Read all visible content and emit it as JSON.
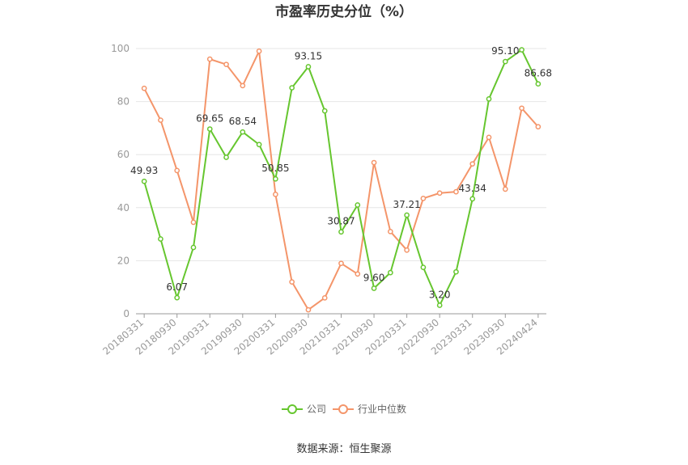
{
  "chart_data": {
    "type": "line",
    "title": "市盈率历史分位（%）",
    "source": "数据来源：恒生聚源",
    "ylim": [
      0,
      100
    ],
    "yticks": [
      0,
      20,
      40,
      60,
      80,
      100
    ],
    "grid": true,
    "legend_position": "bottom",
    "x_tick_labels": [
      "20180331",
      "20180930",
      "20190331",
      "20190930",
      "20200331",
      "20200930",
      "20210331",
      "20210930",
      "20220331",
      "20220930",
      "20230331",
      "20230930",
      "20240424"
    ],
    "x": [
      "20180331",
      "20180630",
      "20180930",
      "20181231",
      "20190331",
      "20190630",
      "20190930",
      "20191231",
      "20200331",
      "20200630",
      "20200930",
      "20201231",
      "20210331",
      "20210630",
      "20210930",
      "20211231",
      "20220331",
      "20220630",
      "20220930",
      "20221231",
      "20230331",
      "20230630",
      "20230930",
      "20231231",
      "20240424"
    ],
    "series": [
      {
        "name": "公司",
        "color": "#66c62f",
        "values": [
          49.93,
          28.2,
          6.07,
          25.0,
          69.65,
          59.0,
          68.54,
          63.8,
          50.85,
          85.2,
          93.15,
          76.5,
          30.87,
          41.0,
          9.6,
          15.5,
          37.21,
          17.5,
          3.2,
          15.8,
          43.34,
          81.0,
          95.1,
          99.5,
          86.68
        ],
        "labels": {
          "0": "49.93",
          "2": "6.07",
          "4": "69.65",
          "6": "68.54",
          "8": "50.85",
          "10": "93.15",
          "12": "30.87",
          "14": "9.60",
          "16": "37.21",
          "18": "3.20",
          "20": "43.34",
          "22": "95.10",
          "24": "86.68"
        }
      },
      {
        "name": "行业中位数",
        "color": "#f4956a",
        "values": [
          85.0,
          73.0,
          54.0,
          34.5,
          96.0,
          94.0,
          86.0,
          99.0,
          45.0,
          12.0,
          1.5,
          6.0,
          19.0,
          15.0,
          57.0,
          31.0,
          24.0,
          43.5,
          45.5,
          46.0,
          56.5,
          66.5,
          47.0,
          77.5,
          70.5
        ],
        "labels": {}
      }
    ]
  }
}
